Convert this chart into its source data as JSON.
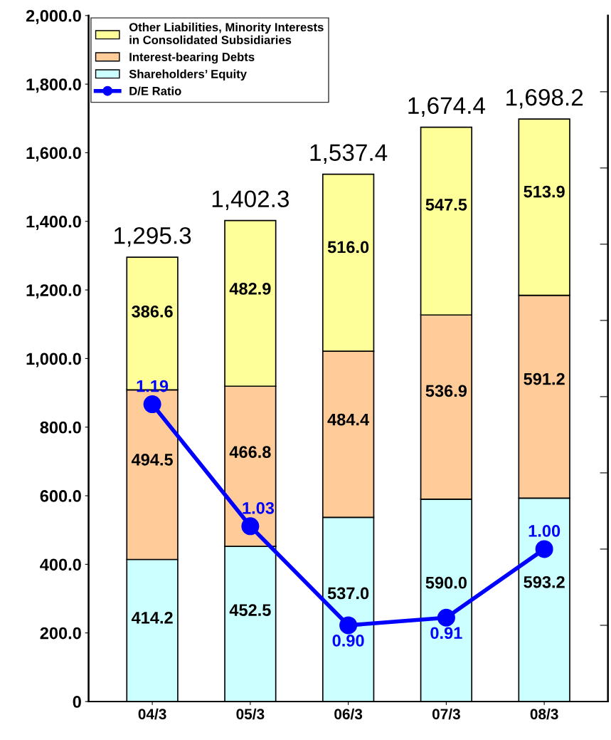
{
  "chart_data": {
    "type": "bar",
    "stacked": true,
    "categories": [
      "04/3",
      "05/3",
      "06/3",
      "07/3",
      "08/3"
    ],
    "series": [
      {
        "name": "Shareholders’ Equity",
        "color": "#ccffff",
        "values": [
          414.2,
          452.5,
          537.0,
          590.0,
          593.2
        ],
        "value_labels": [
          "414.2",
          "452.5",
          "537.0",
          "590.0",
          "593.2"
        ]
      },
      {
        "name": "Interest-bearing Debts",
        "color": "#ffcc99",
        "values": [
          494.5,
          466.8,
          484.4,
          536.9,
          591.2
        ],
        "value_labels": [
          "494.5",
          "466.8",
          "484.4",
          "536.9",
          "591.2"
        ]
      },
      {
        "name": "Other Liabilities, Minority Interests\nin Consolidated Subsidiaries",
        "color": "#ffff99",
        "values": [
          386.6,
          482.9,
          516.0,
          547.5,
          513.9
        ],
        "value_labels": [
          "386.6",
          "482.9",
          "516.0",
          "547.5",
          "513.9"
        ]
      },
      {
        "name": "D/E Ratio",
        "type": "line",
        "axis": "y2",
        "color": "#0000ff",
        "marker": "circle",
        "values": [
          1.19,
          1.03,
          0.9,
          0.91,
          1.0
        ],
        "value_labels": [
          "1.19",
          "1.03",
          "0.90",
          "0.91",
          "1.00"
        ]
      }
    ],
    "totals": [
      "1,295.3",
      "1,402.3",
      "1,537.4",
      "1,674.4",
      "1,698.2"
    ],
    "ylim": [
      0,
      2000
    ],
    "yticks": [
      0,
      {
        "value": 200,
        "label": "200.0"
      },
      {
        "value": 400,
        "label": "400.0"
      },
      {
        "value": 600,
        "label": "600.0"
      },
      {
        "value": 800,
        "label": "800.0"
      },
      {
        "value": 1000,
        "label": "1,000.0"
      },
      {
        "value": 1200,
        "label": "1,200.0"
      },
      {
        "value": 1400,
        "label": "1,400.0"
      },
      {
        "value": 1600,
        "label": "1,600.0"
      },
      {
        "value": 1800,
        "label": "1,800.0"
      },
      {
        "value": 2000,
        "label": "2,000.0"
      }
    ],
    "y2lim": [
      0.8,
      1.7
    ],
    "y2ticks": [
      {
        "value": 0.9,
        "label": null
      },
      {
        "value": 1.0,
        "label": null
      },
      {
        "value": 1.1,
        "label": null
      },
      {
        "value": 1.2,
        "label": null
      },
      {
        "value": 1.3,
        "label": null
      },
      {
        "value": 1.4,
        "label": null
      },
      {
        "value": 1.5,
        "label": null
      },
      {
        "value": 1.6,
        "label": null
      }
    ],
    "grid": false,
    "legend": "top left"
  }
}
